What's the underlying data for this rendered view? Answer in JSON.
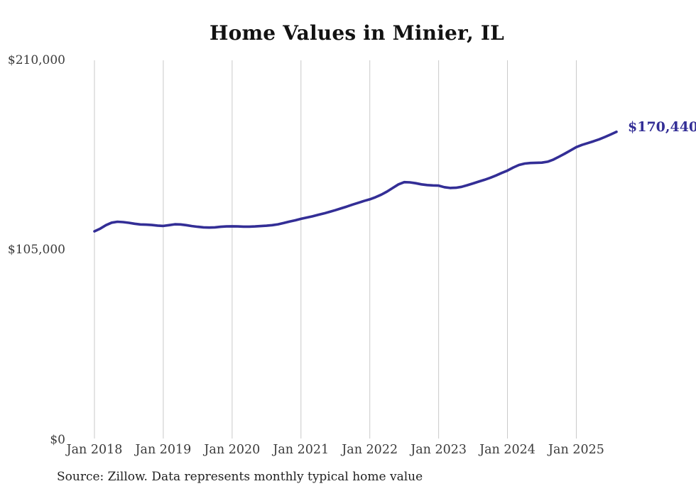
{
  "title": "Home Values in Minier, IL",
  "source_note": "Source: Zillow. Data represents monthly typical home value",
  "end_label": "$170,440",
  "colors": {
    "line": "#332e96",
    "end_label": "#332e96",
    "gridline": "#c9c9c9",
    "tick_text": "#3b3b3b",
    "title_text": "#121212"
  },
  "chart_data": {
    "type": "line",
    "title": "Home Values in Minier, IL",
    "series_name": "Monthly typical home value (Zillow)",
    "frequency": "monthly",
    "x_start": "Jan 2018",
    "x_end": "Aug 2025",
    "x_tick_labels": [
      "Jan 2018",
      "Jan 2019",
      "Jan 2020",
      "Jan 2021",
      "Jan 2022",
      "Jan 2023",
      "Jan 2024",
      "Jan 2025"
    ],
    "y_ticks": [
      {
        "label": "$210,000",
        "value": 210000
      },
      {
        "label": "$105,000",
        "value": 105000
      },
      {
        "label": "$0",
        "value": 0
      }
    ],
    "ylim": [
      0,
      210000
    ],
    "grid": "vertical-only",
    "legend": "none",
    "last_value_label": "$170,440",
    "last_value": 170440,
    "values": [
      115400,
      116900,
      118800,
      120200,
      120700,
      120500,
      120100,
      119600,
      119200,
      119100,
      118900,
      118600,
      118400,
      118800,
      119300,
      119200,
      118800,
      118300,
      117900,
      117600,
      117500,
      117600,
      117900,
      118100,
      118200,
      118100,
      118000,
      118000,
      118100,
      118300,
      118500,
      118800,
      119300,
      120000,
      120800,
      121500,
      122300,
      123000,
      123700,
      124500,
      125300,
      126200,
      127100,
      128100,
      129100,
      130200,
      131200,
      132200,
      133100,
      134300,
      135700,
      137400,
      139400,
      141400,
      142600,
      142500,
      142000,
      141400,
      141000,
      140800,
      140700,
      139800,
      139400,
      139500,
      140000,
      140900,
      141900,
      142900,
      143900,
      145000,
      146300,
      147700,
      149000,
      150700,
      152100,
      152900,
      153200,
      153300,
      153400,
      153900,
      155100,
      156700,
      158400,
      160200,
      162000,
      163200,
      164200,
      165200,
      166300,
      167600,
      169000,
      170440
    ]
  }
}
